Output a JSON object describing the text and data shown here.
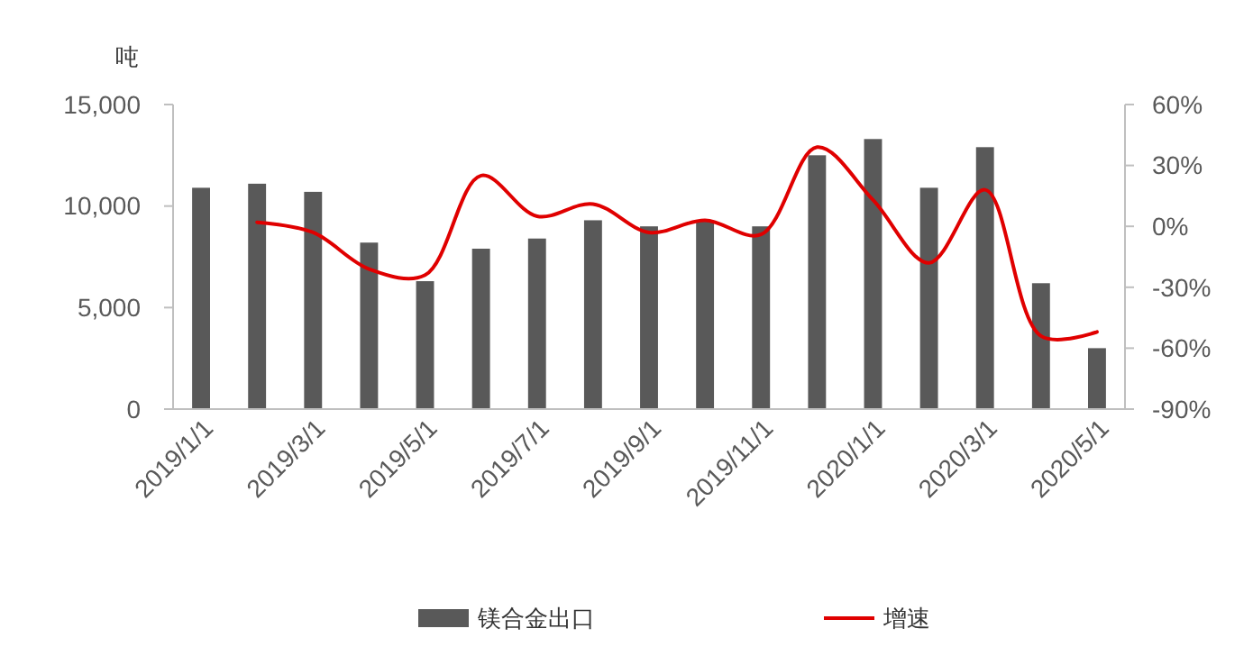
{
  "chart_data": {
    "type": "bar",
    "ylabel": "吨",
    "categories": [
      "2019/1/1",
      null,
      "2019/3/1",
      null,
      "2019/5/1",
      null,
      "2019/7/1",
      null,
      "2019/9/1",
      null,
      "2019/11/1",
      null,
      "2020/1/1",
      null,
      "2020/3/1",
      null,
      "2020/5/1"
    ],
    "series": [
      {
        "name": "镁合金出口",
        "color": "#595959",
        "values": [
          10900,
          11100,
          10700,
          8200,
          6300,
          7900,
          8400,
          9300,
          9000,
          9300,
          9000,
          12500,
          13300,
          10900,
          12900,
          6200,
          3000
        ]
      },
      {
        "name": "增速",
        "type": "line",
        "axis": "y2",
        "color": "#e00000",
        "values": [
          null,
          2,
          -3,
          -21,
          -24,
          25,
          5,
          11,
          -3,
          3,
          -4,
          39,
          13,
          -18,
          18,
          -54,
          -52
        ]
      }
    ],
    "ylim": [
      0,
      15000
    ],
    "yticks": [
      0,
      {
        "value": 5000,
        "label": "5,000"
      },
      {
        "value": 10000,
        "label": "10,000"
      },
      {
        "value": 15000,
        "label": "15,000"
      }
    ],
    "y2lim": [
      -90,
      60
    ],
    "y2ticks": [
      {
        "value": -90,
        "label": "-90%"
      },
      {
        "value": -60,
        "label": "-60%"
      },
      {
        "value": -30,
        "label": "-30%"
      },
      {
        "value": 0,
        "label": "0%"
      },
      {
        "value": 30,
        "label": "30%"
      },
      {
        "value": 60,
        "label": "60%"
      }
    ],
    "legend": "bottom",
    "grid": false,
    "marker": "none",
    "line_style": "solid"
  }
}
